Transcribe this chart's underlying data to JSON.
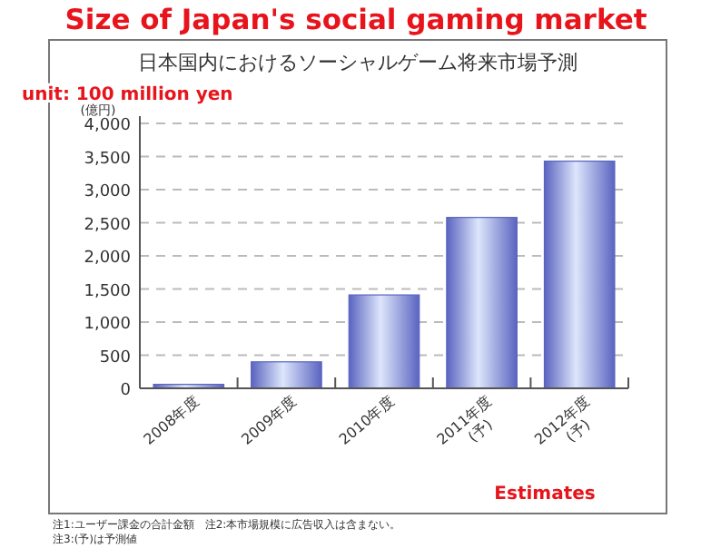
{
  "chart_data": {
    "type": "bar",
    "title": "Size of Japan's social gaming market",
    "subtitle": "日本国内におけるソーシャルゲーム将来市場予測",
    "ylabel": "(億円)",
    "categories": [
      "2008年度",
      "2009年度",
      "2010年度",
      "2011年度\n(予)",
      "2012年度\n(予)"
    ],
    "values": [
      60,
      400,
      1410,
      2580,
      3430
    ],
    "color": "#5a64c0",
    "ylim": [
      0,
      4000
    ],
    "yticks": [
      0,
      500,
      {
        "value": 1000,
        "label": "1,000"
      },
      {
        "value": 1500,
        "label": "1,500"
      },
      {
        "value": 2000,
        "label": "2,000"
      },
      {
        "value": 2500,
        "label": "2,500"
      },
      {
        "value": 3000,
        "label": "3,000"
      },
      {
        "value": 3500,
        "label": "3,500"
      },
      {
        "value": 4000,
        "label": "4,000"
      }
    ],
    "grid": "y",
    "annotations": [
      "unit: 100 million yen",
      "Estimates",
      "注1:ユーザー課金の合計金額　注2:本市場規模に広告収入は含まない。",
      "注3:(予)は予測値"
    ]
  }
}
